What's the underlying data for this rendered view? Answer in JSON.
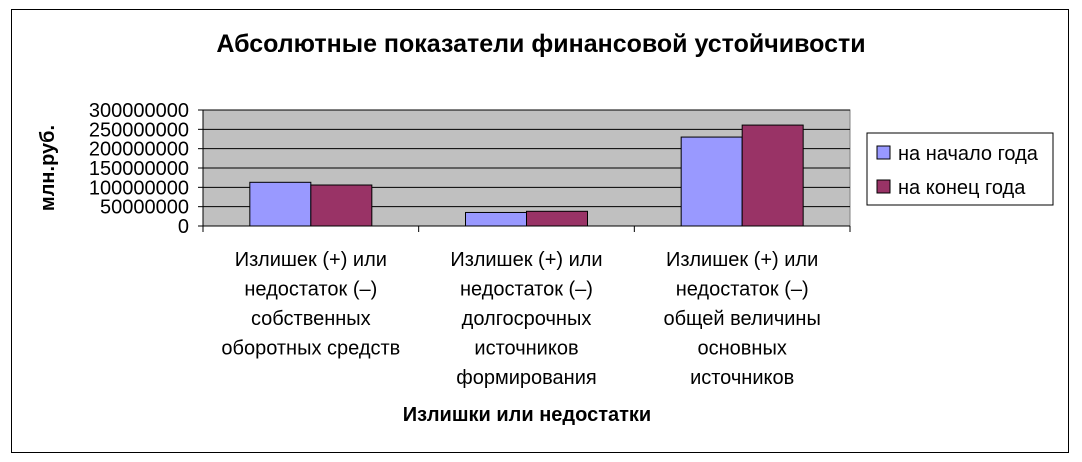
{
  "chart_data": {
    "type": "bar",
    "title": "Абсолютные показатели финансовой устойчивости",
    "xlabel": "Излишки или недостатки",
    "ylabel": "млн.руб.",
    "ylim": [
      0,
      300000000
    ],
    "yticks": [
      "0",
      "50000000",
      "100000000",
      "150000000",
      "200000000",
      "250000000",
      "300000000"
    ],
    "categories": [
      [
        "Излишек (+) или",
        "недостаток (–)",
        "собственных",
        "оборотных средств"
      ],
      [
        "Излишек (+) или",
        "недостаток (–)",
        "долгосрочных",
        "источников",
        "формирования"
      ],
      [
        "Излишек (+) или",
        "недостаток (–)",
        "общей величины",
        "основных",
        "источников"
      ]
    ],
    "series": [
      {
        "name": "на начало года",
        "values": [
          113000000,
          35000000,
          230000000
        ],
        "color": "#9999FF"
      },
      {
        "name": "на конец года",
        "values": [
          106000000,
          38000000,
          261000000
        ],
        "color": "#993366"
      }
    ],
    "grid": true,
    "plot_background": "#C0C0C0",
    "legend_position": "right"
  }
}
